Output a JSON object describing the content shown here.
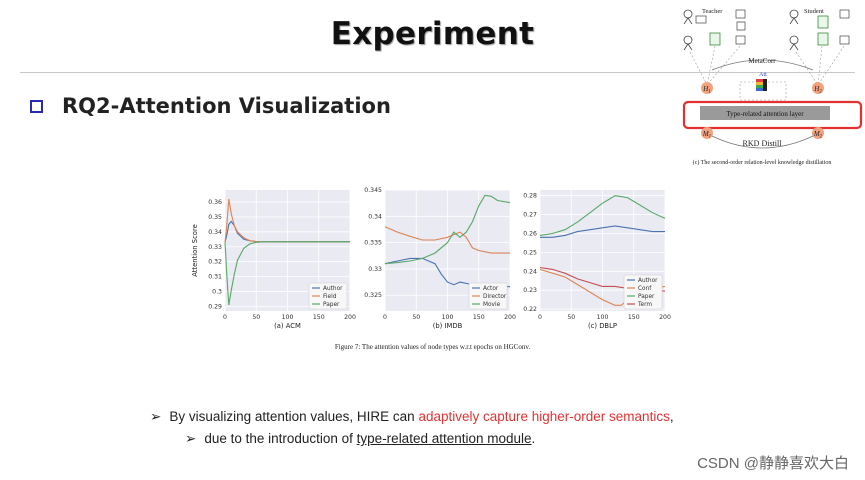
{
  "slide": {
    "title": "Experiment",
    "rq": "RQ2-Attention Visualization",
    "bullet1": {
      "arrow": "➢",
      "pre": "By visualizing attention values, HIRE can ",
      "highlight": "adaptively capture higher-order semantics",
      "post": ","
    },
    "bullet2": {
      "arrow": "➢",
      "pre": "due to the introduction of ",
      "underlined": "type-related attention module",
      "post": "."
    },
    "watermark": "CSDN @静静喜欢大白",
    "caption": "Figure 7: The attention values of node types w.r.t epochs on HGConv.",
    "colors": {
      "highlight": "#e23232",
      "accent_box": "#e53030"
    }
  },
  "diagram": {
    "teacher": "Teacher",
    "student": "Student",
    "metacorr": "MetaCorr",
    "att": "Att",
    "h1": "H",
    "h1_sub": "1",
    "h2": "H",
    "h2_sub": "2",
    "type_layer": "Type-related attention layer",
    "m1": "M",
    "m1_sub": "1",
    "m2": "M",
    "m2_sub": "2",
    "rkd": "RKD Distill",
    "caption": "(c) The second-order relation-level knowledge distillation"
  },
  "chart_data": [
    {
      "type": "line",
      "subtitle": "(a) ACM",
      "ylabel": "Attention Score",
      "xlim": [
        0,
        200
      ],
      "ylim": [
        0.287,
        0.368
      ],
      "xticks": [
        0,
        50,
        100,
        150,
        200
      ],
      "yticks": [
        0.29,
        0.3,
        0.31,
        0.32,
        0.33,
        0.34,
        0.35,
        0.36
      ],
      "grid": true,
      "legend": "bottom-right",
      "series": [
        {
          "name": "Author",
          "color": "#4c72b0",
          "x": [
            0,
            3,
            6,
            10,
            15,
            20,
            30,
            40,
            50,
            60,
            200
          ],
          "y": [
            0.333,
            0.338,
            0.345,
            0.347,
            0.344,
            0.339,
            0.335,
            0.334,
            0.3335,
            0.3333,
            0.3333
          ]
        },
        {
          "name": "Field",
          "color": "#dd8452",
          "x": [
            0,
            3,
            6,
            10,
            15,
            20,
            30,
            40,
            50,
            60,
            200
          ],
          "y": [
            0.333,
            0.345,
            0.362,
            0.352,
            0.344,
            0.34,
            0.336,
            0.334,
            0.3335,
            0.3333,
            0.3333
          ]
        },
        {
          "name": "Paper",
          "color": "#55a868",
          "x": [
            0,
            3,
            6,
            10,
            15,
            20,
            30,
            40,
            50,
            60,
            200
          ],
          "y": [
            0.333,
            0.31,
            0.291,
            0.301,
            0.312,
            0.321,
            0.329,
            0.332,
            0.333,
            0.3333,
            0.3333
          ]
        }
      ]
    },
    {
      "type": "line",
      "subtitle": "(b) IMDB",
      "xlim": [
        0,
        200
      ],
      "ylim": [
        0.322,
        0.345
      ],
      "xticks": [
        0,
        50,
        100,
        150,
        200
      ],
      "yticks": [
        0.325,
        0.33,
        0.335,
        0.34,
        0.345
      ],
      "grid": true,
      "legend": "bottom-right",
      "series": [
        {
          "name": "Actor",
          "color": "#4c72b0",
          "x": [
            0,
            20,
            40,
            60,
            80,
            90,
            100,
            110,
            120,
            140,
            160,
            180,
            200
          ],
          "y": [
            0.331,
            0.3315,
            0.332,
            0.332,
            0.331,
            0.329,
            0.3275,
            0.327,
            0.3275,
            0.327,
            0.327,
            0.3268,
            0.3266
          ]
        },
        {
          "name": "Director",
          "color": "#dd8452",
          "x": [
            0,
            20,
            40,
            60,
            80,
            100,
            120,
            130,
            140,
            150,
            170,
            200
          ],
          "y": [
            0.338,
            0.337,
            0.3362,
            0.3355,
            0.3355,
            0.336,
            0.337,
            0.336,
            0.334,
            0.3335,
            0.333,
            0.333
          ]
        },
        {
          "name": "Movie",
          "color": "#55a868",
          "x": [
            0,
            20,
            40,
            60,
            80,
            100,
            110,
            120,
            130,
            140,
            150,
            160,
            170,
            180,
            200
          ],
          "y": [
            0.331,
            0.3312,
            0.3315,
            0.332,
            0.333,
            0.335,
            0.337,
            0.336,
            0.337,
            0.339,
            0.342,
            0.344,
            0.3438,
            0.343,
            0.3426
          ]
        }
      ]
    },
    {
      "type": "line",
      "subtitle": "(c) DBLP",
      "xlim": [
        0,
        200
      ],
      "ylim": [
        0.219,
        0.283
      ],
      "xticks": [
        0,
        50,
        100,
        150,
        200
      ],
      "yticks": [
        0.22,
        0.23,
        0.24,
        0.25,
        0.26,
        0.27,
        0.28
      ],
      "grid": true,
      "legend": "bottom-right",
      "series": [
        {
          "name": "Author",
          "color": "#4c72b0",
          "x": [
            0,
            20,
            40,
            60,
            80,
            100,
            120,
            140,
            160,
            180,
            200
          ],
          "y": [
            0.258,
            0.258,
            0.259,
            0.261,
            0.262,
            0.263,
            0.264,
            0.263,
            0.262,
            0.261,
            0.261
          ]
        },
        {
          "name": "Conf",
          "color": "#dd8452",
          "x": [
            0,
            20,
            40,
            60,
            80,
            100,
            120,
            130,
            140,
            160,
            180,
            200
          ],
          "y": [
            0.241,
            0.239,
            0.237,
            0.233,
            0.229,
            0.225,
            0.222,
            0.222,
            0.225,
            0.228,
            0.231,
            0.232
          ]
        },
        {
          "name": "Paper",
          "color": "#55a868",
          "x": [
            0,
            20,
            40,
            60,
            80,
            100,
            110,
            120,
            130,
            140,
            160,
            180,
            200
          ],
          "y": [
            0.259,
            0.26,
            0.262,
            0.266,
            0.271,
            0.276,
            0.278,
            0.28,
            0.2795,
            0.279,
            0.275,
            0.271,
            0.268
          ]
        },
        {
          "name": "Term",
          "color": "#c44e52",
          "x": [
            0,
            20,
            40,
            60,
            80,
            100,
            120,
            140,
            160,
            180,
            200
          ],
          "y": [
            0.242,
            0.241,
            0.239,
            0.236,
            0.234,
            0.232,
            0.232,
            0.231,
            0.23,
            0.23,
            0.2295
          ]
        }
      ]
    }
  ]
}
